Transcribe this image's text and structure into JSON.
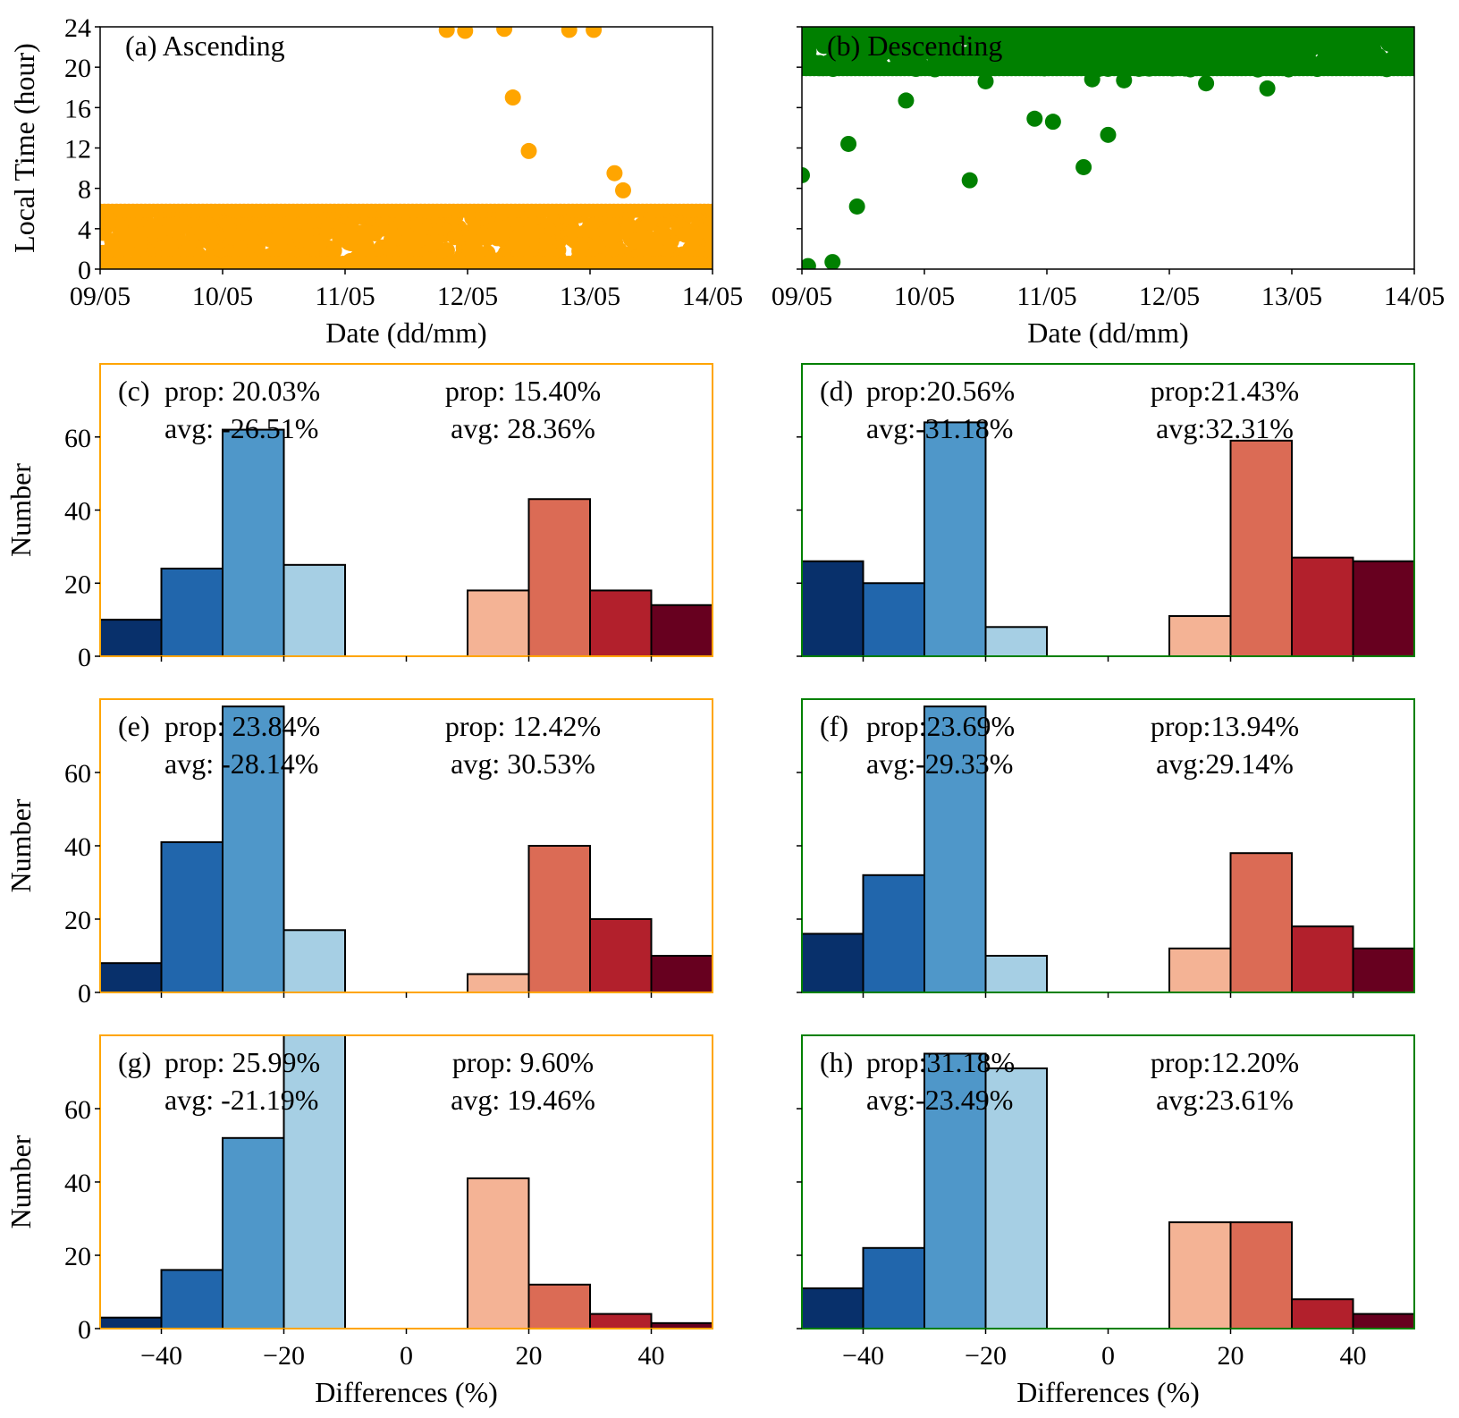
{
  "colors": {
    "ascending": "#FFA500",
    "descending": "#008000",
    "bins": [
      "#08306B",
      "#2166AC",
      "#4F97C9",
      "#A6CFE4",
      "#F4B395",
      "#DB6B55",
      "#B2202C",
      "#67001F"
    ]
  },
  "chart_data": [
    {
      "id": "a",
      "type": "scatter",
      "panel_label": "(a) Ascending",
      "xlabel": "Date (dd/mm)",
      "ylabel": "Local Time (hour)",
      "x_tick_labels": [
        "09/05",
        "10/05",
        "11/05",
        "12/05",
        "13/05",
        "14/05"
      ],
      "xlim": [
        0,
        5
      ],
      "ylim": [
        0,
        24
      ],
      "y_ticks": [
        0,
        4,
        8,
        12,
        16,
        20,
        24
      ],
      "dense_band": {
        "x_range": [
          0,
          5
        ],
        "y_range": [
          0,
          6.4
        ],
        "color_key": "ascending"
      },
      "outliers": [
        {
          "x": 2.83,
          "y": 23.7
        },
        {
          "x": 2.98,
          "y": 23.6
        },
        {
          "x": 3.3,
          "y": 23.8
        },
        {
          "x": 3.83,
          "y": 23.7
        },
        {
          "x": 4.03,
          "y": 23.7
        },
        {
          "x": 3.37,
          "y": 17.0
        },
        {
          "x": 3.5,
          "y": 11.7
        },
        {
          "x": 4.2,
          "y": 9.5
        },
        {
          "x": 4.27,
          "y": 7.8
        }
      ]
    },
    {
      "id": "b",
      "type": "scatter",
      "panel_label": "(b) Descending",
      "xlabel": "Date (dd/mm)",
      "ylabel": "",
      "x_tick_labels": [
        "09/05",
        "10/05",
        "11/05",
        "12/05",
        "13/05",
        "14/05"
      ],
      "xlim": [
        0,
        5
      ],
      "ylim": [
        0,
        24
      ],
      "y_ticks": [
        0,
        4,
        8,
        12,
        16,
        20,
        24
      ],
      "dense_band": {
        "x_range": [
          0,
          5
        ],
        "y_range": [
          19.2,
          24
        ],
        "color_key": "descending"
      },
      "outliers": [
        {
          "x": 0.0,
          "y": 9.3
        },
        {
          "x": 0.05,
          "y": 0.3
        },
        {
          "x": 0.25,
          "y": 0.7
        },
        {
          "x": 0.38,
          "y": 12.4
        },
        {
          "x": 0.45,
          "y": 6.2
        },
        {
          "x": 0.85,
          "y": 16.7
        },
        {
          "x": 1.37,
          "y": 8.8
        },
        {
          "x": 1.5,
          "y": 18.6
        },
        {
          "x": 1.9,
          "y": 14.9
        },
        {
          "x": 2.05,
          "y": 14.6
        },
        {
          "x": 2.3,
          "y": 10.1
        },
        {
          "x": 2.37,
          "y": 18.8
        },
        {
          "x": 2.5,
          "y": 13.3
        },
        {
          "x": 2.63,
          "y": 18.7
        },
        {
          "x": 3.3,
          "y": 18.4
        },
        {
          "x": 3.8,
          "y": 17.9
        }
      ]
    },
    {
      "id": "c",
      "type": "bar",
      "panel_label": "(c)",
      "frame_color_key": "ascending",
      "ylabel": "Number",
      "xlabel": "",
      "show_x_tick_labels": false,
      "ylim": [
        0,
        80
      ],
      "y_ticks": [
        0,
        20,
        40,
        60
      ],
      "xlim": [
        -50,
        50
      ],
      "x_ticks": [
        -40,
        -20,
        0,
        20,
        40
      ],
      "bin_edges": [
        -50,
        -40,
        -30,
        -20,
        -10,
        10,
        20,
        30,
        40,
        50
      ],
      "neg_values": [
        10,
        24,
        62,
        25
      ],
      "pos_values": [
        18,
        43,
        18,
        14
      ],
      "neg_stats": {
        "prop": "prop: 20.03%",
        "avg": "avg: -26.51%"
      },
      "pos_stats": {
        "prop": "prop: 15.40%",
        "avg": "avg: 28.36%"
      }
    },
    {
      "id": "d",
      "type": "bar",
      "panel_label": "(d)",
      "frame_color_key": "descending",
      "ylabel": "",
      "xlabel": "",
      "show_x_tick_labels": false,
      "ylim": [
        0,
        80
      ],
      "y_ticks": [
        0,
        20,
        40,
        60
      ],
      "xlim": [
        -50,
        50
      ],
      "x_ticks": [
        -40,
        -20,
        0,
        20,
        40
      ],
      "bin_edges": [
        -50,
        -40,
        -30,
        -20,
        -10,
        10,
        20,
        30,
        40,
        50
      ],
      "neg_values": [
        26,
        20,
        64,
        8
      ],
      "pos_values": [
        11,
        59,
        27,
        26
      ],
      "neg_stats": {
        "prop": "prop:20.56%",
        "avg": "avg:-31.18%"
      },
      "pos_stats": {
        "prop": "prop:21.43%",
        "avg": "avg:32.31%"
      }
    },
    {
      "id": "e",
      "type": "bar",
      "panel_label": "(e)",
      "frame_color_key": "ascending",
      "ylabel": "Number",
      "xlabel": "",
      "show_x_tick_labels": false,
      "ylim": [
        0,
        80
      ],
      "y_ticks": [
        0,
        20,
        40,
        60
      ],
      "xlim": [
        -50,
        50
      ],
      "x_ticks": [
        -40,
        -20,
        0,
        20,
        40
      ],
      "bin_edges": [
        -50,
        -40,
        -30,
        -20,
        -10,
        10,
        20,
        30,
        40,
        50
      ],
      "neg_values": [
        8,
        41,
        78,
        17
      ],
      "pos_values": [
        5,
        40,
        20,
        10
      ],
      "neg_stats": {
        "prop": "prop: 23.84%",
        "avg": "avg: -28.14%"
      },
      "pos_stats": {
        "prop": "prop: 12.42%",
        "avg": "avg: 30.53%"
      }
    },
    {
      "id": "f",
      "type": "bar",
      "panel_label": "(f)",
      "frame_color_key": "descending",
      "ylabel": "",
      "xlabel": "",
      "show_x_tick_labels": false,
      "ylim": [
        0,
        80
      ],
      "y_ticks": [
        0,
        20,
        40,
        60
      ],
      "xlim": [
        -50,
        50
      ],
      "x_ticks": [
        -40,
        -20,
        0,
        20,
        40
      ],
      "bin_edges": [
        -50,
        -40,
        -30,
        -20,
        -10,
        10,
        20,
        30,
        40,
        50
      ],
      "neg_values": [
        16,
        32,
        78,
        10
      ],
      "pos_values": [
        12,
        38,
        18,
        12
      ],
      "neg_stats": {
        "prop": "prop:23.69%",
        "avg": "avg:-29.33%"
      },
      "pos_stats": {
        "prop": "prop:13.94%",
        "avg": "avg:29.14%"
      }
    },
    {
      "id": "g",
      "type": "bar",
      "panel_label": "(g)",
      "frame_color_key": "ascending",
      "ylabel": "Number",
      "xlabel": "Differences (%)",
      "show_x_tick_labels": true,
      "x_tick_labels": [
        "−40",
        "−20",
        "0",
        "20",
        "40"
      ],
      "ylim": [
        0,
        80
      ],
      "y_ticks": [
        0,
        20,
        40,
        60
      ],
      "xlim": [
        -50,
        50
      ],
      "x_ticks": [
        -40,
        -20,
        0,
        20,
        40
      ],
      "bin_edges": [
        -50,
        -40,
        -30,
        -20,
        -10,
        10,
        20,
        30,
        40,
        50
      ],
      "neg_values": [
        3,
        16,
        52,
        82
      ],
      "pos_values": [
        41,
        12,
        4,
        1.5
      ],
      "neg_stats": {
        "prop": "prop: 25.99%",
        "avg": "avg: -21.19%"
      },
      "pos_stats": {
        "prop": "prop: 9.60%",
        "avg": "avg: 19.46%"
      }
    },
    {
      "id": "h",
      "type": "bar",
      "panel_label": "(h)",
      "frame_color_key": "descending",
      "ylabel": "",
      "xlabel": "Differences (%)",
      "show_x_tick_labels": true,
      "x_tick_labels": [
        "−40",
        "−20",
        "0",
        "20",
        "40"
      ],
      "ylim": [
        0,
        80
      ],
      "y_ticks": [
        0,
        20,
        40,
        60
      ],
      "xlim": [
        -50,
        50
      ],
      "x_ticks": [
        -40,
        -20,
        0,
        20,
        40
      ],
      "bin_edges": [
        -50,
        -40,
        -30,
        -20,
        -10,
        10,
        20,
        30,
        40,
        50
      ],
      "neg_values": [
        11,
        22,
        75,
        71
      ],
      "pos_values": [
        29,
        29,
        8,
        4
      ],
      "neg_stats": {
        "prop": "prop:31.18%",
        "avg": "avg:-23.49%"
      },
      "pos_stats": {
        "prop": "prop:12.20%",
        "avg": "avg:23.61%"
      }
    }
  ]
}
